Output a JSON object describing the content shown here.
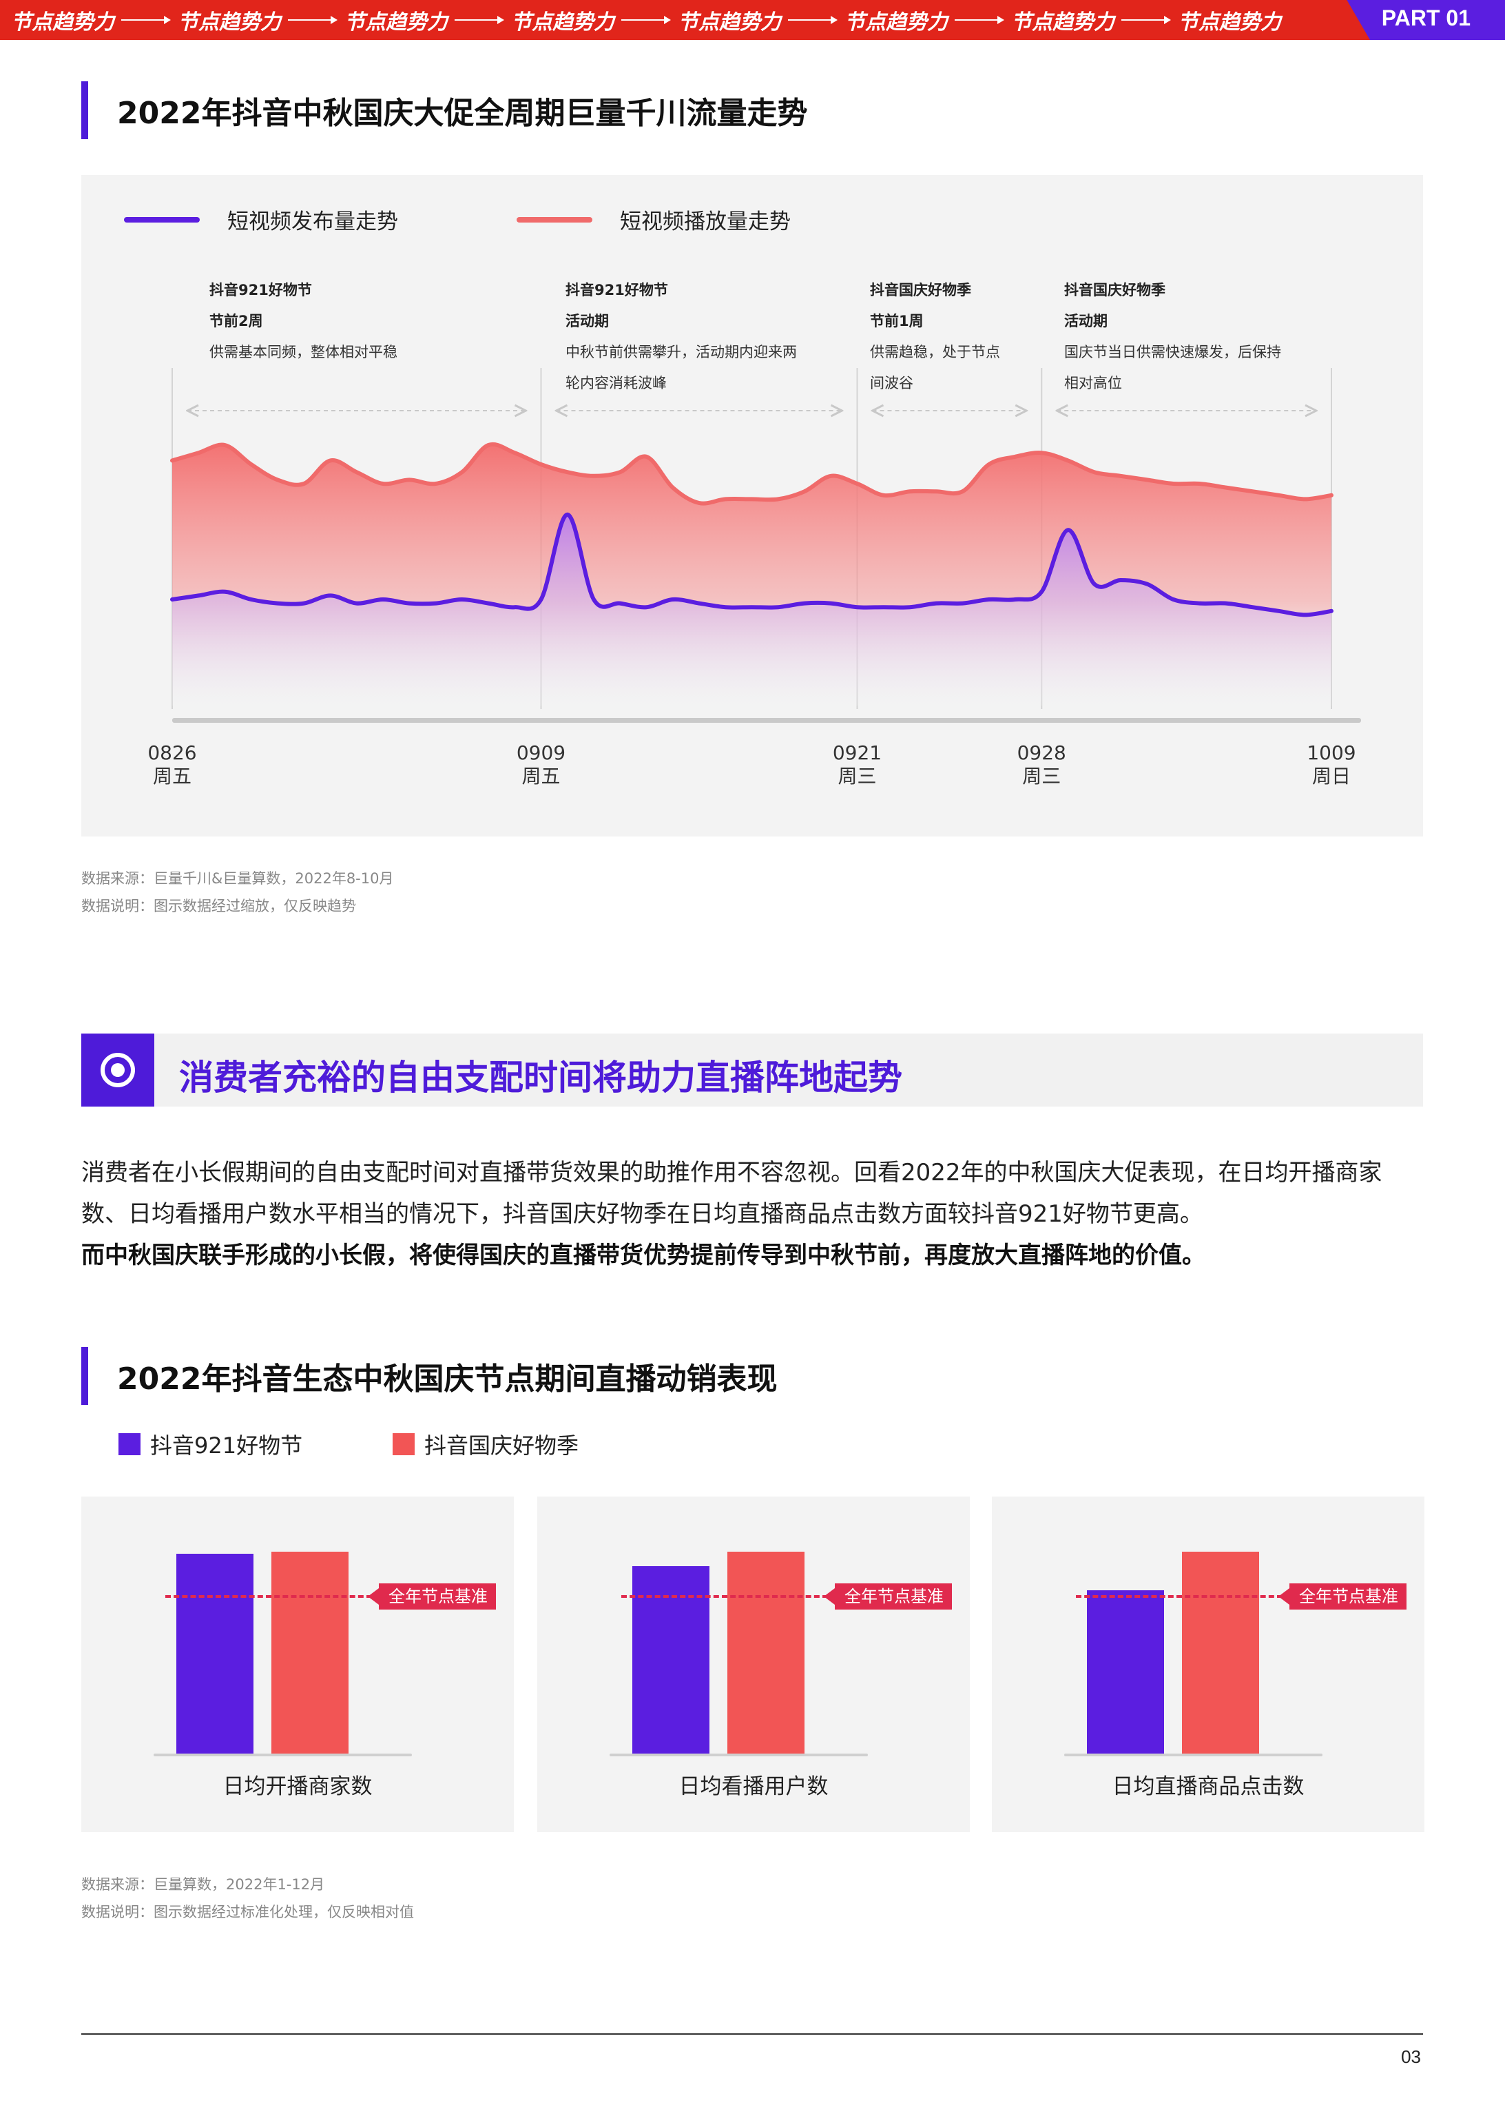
{
  "banner": {
    "items": [
      "节点趋势力",
      "节点趋势力",
      "节点趋势力",
      "节点趋势力",
      "节点趋势力",
      "节点趋势力",
      "节点趋势力",
      "节点趋势力"
    ],
    "part_label": "PART 01",
    "color": "#e1251b",
    "accent": "#5b1ee0"
  },
  "section1": {
    "title": "2022年抖音中秋国庆大促全周期巨量千川流量走势"
  },
  "chart_data": [
    {
      "type": "area",
      "legend": [
        {
          "name": "短视频发布量走势",
          "color": "#5b1ee0"
        },
        {
          "name": "短视频播放量走势",
          "color": "#f06a6a"
        }
      ],
      "x_ticks": [
        {
          "date": "0826",
          "weekday": "周五"
        },
        {
          "date": "0909",
          "weekday": "周五"
        },
        {
          "date": "0921",
          "weekday": "周三"
        },
        {
          "date": "0928",
          "weekday": "周三"
        },
        {
          "date": "1009",
          "weekday": "周日"
        }
      ],
      "phases": [
        {
          "name": "抖音921好物节",
          "period": "节前2周",
          "desc": [
            "供需基本同频，整体相对平稳"
          ]
        },
        {
          "name": "抖音921好物节",
          "period": "活动期",
          "desc": [
            "中秋节前供需攀升，活动期内迎来两",
            "轮内容消耗波峰"
          ]
        },
        {
          "name": "抖音国庆好物季",
          "period": "节前1周",
          "desc": [
            "供需趋稳，处于节点",
            "间波谷"
          ]
        },
        {
          "name": "抖音国庆好物季",
          "period": "活动期",
          "desc": [
            "国庆节当日供需快速爆发，后保持",
            "相对高位"
          ]
        }
      ],
      "series": [
        {
          "name": "短视频播放量走势",
          "x": [
            "0826",
            "0827",
            "0828",
            "0829",
            "0830",
            "0831",
            "0901",
            "0902",
            "0903",
            "0904",
            "0905",
            "0906",
            "0907",
            "0908",
            "0909",
            "0910",
            "0911",
            "0912",
            "0913",
            "0914",
            "0915",
            "0916",
            "0917",
            "0918",
            "0919",
            "0920",
            "0921",
            "0922",
            "0923",
            "0924",
            "0925",
            "0926",
            "0927",
            "0928",
            "0929",
            "0930",
            "1001",
            "1002",
            "1003",
            "1004",
            "1005",
            "1006",
            "1007",
            "1008",
            "1009"
          ],
          "values": [
            76,
            78,
            80,
            75,
            71,
            70,
            76,
            73,
            70,
            71,
            70,
            73,
            80,
            78,
            75,
            73,
            72,
            73,
            77,
            69,
            65,
            66,
            66,
            66,
            68,
            72,
            70,
            67,
            68,
            68,
            68,
            75,
            77,
            78,
            76,
            73,
            72,
            71,
            70,
            70,
            69,
            68,
            67,
            66,
            67
          ]
        },
        {
          "name": "短视频发布量走势",
          "x": [
            "0826",
            "0827",
            "0828",
            "0829",
            "0830",
            "0831",
            "0901",
            "0902",
            "0903",
            "0904",
            "0905",
            "0906",
            "0907",
            "0908",
            "0909",
            "0910",
            "0911",
            "0912",
            "0913",
            "0914",
            "0915",
            "0916",
            "0917",
            "0918",
            "0919",
            "0920",
            "0921",
            "0922",
            "0923",
            "0924",
            "0925",
            "0926",
            "0927",
            "0928",
            "0929",
            "0930",
            "1001",
            "1002",
            "1003",
            "1004",
            "1005",
            "1006",
            "1007",
            "1008",
            "1009"
          ],
          "values": [
            40,
            41,
            42,
            40,
            39,
            39,
            41,
            39,
            40,
            39,
            39,
            40,
            39,
            38,
            40,
            62,
            40,
            39,
            38,
            40,
            39,
            38,
            38,
            38,
            39,
            39,
            38,
            38,
            38,
            39,
            39,
            40,
            40,
            42,
            58,
            44,
            45,
            44,
            40,
            39,
            39,
            38,
            37,
            36,
            37
          ]
        }
      ],
      "grid": false
    },
    {
      "type": "bar",
      "title": "2022年抖音生态中秋国庆节点期间直播动销表现",
      "series": [
        {
          "name": "抖音921好物节",
          "color": "#5b1ee0",
          "values": [
            99,
            93,
            81
          ]
        },
        {
          "name": "抖音国庆好物季",
          "color": "#f25555",
          "values": [
            100,
            100,
            100
          ]
        }
      ],
      "categories": [
        "日均开播商家数",
        "日均看播用户数",
        "日均直播商品点击数"
      ],
      "baseline": {
        "label": "全年节点基准",
        "value": 78
      },
      "ylim": [
        0,
        100
      ]
    }
  ],
  "notes1": {
    "source": "数据来源：巨量千川&巨量算数，2022年8-10月",
    "explain": "数据说明：图示数据经过缩放，仅反映趋势"
  },
  "highlight": {
    "title": "消费者充裕的自由支配时间将助力直播阵地起势"
  },
  "body": {
    "p1": "消费者在小长假期间的自由支配时间对直播带货效果的助推作用不容忽视。回看2022年的中秋国庆大促表现，在日均开播商家数、日均看播用户数水平相当的情况下，抖音国庆好物季在日均直播商品点击数方面较抖音921好物节更高。",
    "p2": "而中秋国庆联手形成的小长假，将使得国庆的直播带货优势提前传导到中秋节前，再度放大直播阵地的价值。"
  },
  "section2": {
    "title": "2022年抖音生态中秋国庆节点期间直播动销表现"
  },
  "notes2": {
    "source": "数据来源：巨量算数，2022年1-12月",
    "explain": "数据说明：图示数据经过标准化处理，仅反映相对值"
  },
  "footer": {
    "page": "03"
  }
}
